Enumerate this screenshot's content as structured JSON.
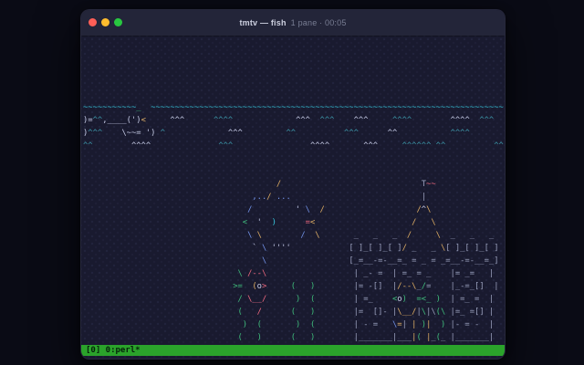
{
  "window": {
    "title": "tmtv — fish",
    "title_detail": "1 pane · 00:05"
  },
  "status_bar": {
    "text": "[0] 0:perl*"
  },
  "palette": {
    "page_bg": "#0a0b15",
    "window_bg": "#191a2f",
    "titlebar_bg": "#232539",
    "traffic_red": "#ff5f57",
    "traffic_yellow": "#febc2e",
    "traffic_green": "#28c840",
    "status_bg": "#2ba32b",
    "status_fg": "#05220a",
    "cy": "#36c3da",
    "te": "#3c96a8",
    "wh": "#c6cbe6",
    "gr": "#3fbe7c",
    "ye": "#dfae64",
    "re": "#ef6a80",
    "bl": "#7495ec",
    "gy": "#9ba1be"
  },
  "terminal": {
    "app": "asciiquarium",
    "cols": 88,
    "rows": [
      [],
      [],
      [],
      [],
      [
        [
          0,
          "cy",
          "~~~~~~~~~~~"
        ],
        [
          11,
          "gr",
          "_"
        ],
        [
          14,
          "cy",
          "~~~~~~~~~~~~~~~~~~~~~~~~~~~~~~~~~~~~~~~~~~~~~~~~~~~~~~~~~~~~~~~~~~~~~~~~~"
        ]
      ],
      [
        [
          0,
          "wh",
          ")="
        ],
        [
          2,
          "te",
          "^^"
        ],
        [
          4,
          "wh",
          ",____('"
        ],
        [
          11,
          "wh",
          ")"
        ],
        [
          12,
          "ye",
          "<"
        ],
        [
          18,
          "wh",
          "^^^"
        ],
        [
          27,
          "te",
          "^^^^"
        ],
        [
          44,
          "wh",
          "^^^"
        ],
        [
          49,
          "te",
          "^^^"
        ],
        [
          56,
          "wh",
          "^^^"
        ],
        [
          64,
          "te",
          "^^^^"
        ],
        [
          76,
          "wh",
          "^^^^"
        ],
        [
          82,
          "te",
          "^^^"
        ]
      ],
      [
        [
          0,
          "wh",
          ")"
        ],
        [
          1,
          "te",
          "^^^"
        ],
        [
          8,
          "wh",
          "\\~~= ')"
        ],
        [
          16,
          "te",
          "^"
        ],
        [
          30,
          "wh",
          "^^^"
        ],
        [
          42,
          "te",
          "^^"
        ],
        [
          54,
          "te",
          "^^^"
        ],
        [
          63,
          "wh",
          "^^"
        ],
        [
          76,
          "te",
          "^^^^"
        ]
      ],
      [
        [
          0,
          "te",
          "^^"
        ],
        [
          10,
          "wh",
          "^^^^"
        ],
        [
          28,
          "te",
          "^^^"
        ],
        [
          47,
          "wh",
          "^^^^"
        ],
        [
          58,
          "wh",
          "^^^"
        ],
        [
          66,
          "te",
          "^^^^^^"
        ],
        [
          73,
          "te",
          "^^"
        ],
        [
          85,
          "te",
          "^^"
        ]
      ],
      [],
      [],
      [
        [
          40,
          "ye",
          "/"
        ],
        [
          70,
          "gy",
          "T"
        ],
        [
          71,
          "re",
          "~~"
        ]
      ],
      [
        [
          35,
          "bl",
          ",.."
        ],
        [
          38,
          "ye",
          "/"
        ],
        [
          40,
          "bl",
          "..."
        ],
        [
          70,
          "gy",
          "|"
        ]
      ],
      [
        [
          34,
          "bl",
          "/"
        ],
        [
          44,
          "wh",
          "'"
        ],
        [
          46,
          "bl",
          "\\"
        ],
        [
          49,
          "ye",
          "/"
        ],
        [
          69,
          "ye",
          "/"
        ],
        [
          70,
          "wh",
          "^"
        ],
        [
          71,
          "ye",
          "\\"
        ]
      ],
      [
        [
          33,
          "gr",
          "<"
        ],
        [
          36,
          "wh",
          "'"
        ],
        [
          39,
          "cy",
          ")"
        ],
        [
          46,
          "re",
          "="
        ],
        [
          47,
          "ye",
          "<"
        ],
        [
          68,
          "ye",
          "/"
        ],
        [
          72,
          "ye",
          "\\"
        ]
      ],
      [
        [
          34,
          "bl",
          "\\"
        ],
        [
          36,
          "ye",
          "\\"
        ],
        [
          45,
          "bl",
          "/"
        ],
        [
          48,
          "ye",
          "\\"
        ],
        [
          56,
          "gy",
          "_"
        ],
        [
          60,
          "gy",
          "_"
        ],
        [
          64,
          "gy",
          "_"
        ],
        [
          67,
          "ye",
          "/"
        ],
        [
          73,
          "ye",
          "\\"
        ],
        [
          76,
          "gy",
          "_"
        ],
        [
          80,
          "gy",
          "_"
        ],
        [
          84,
          "gy",
          "_"
        ]
      ],
      [
        [
          35,
          "wh",
          "`"
        ],
        [
          37,
          "bl",
          "\\"
        ],
        [
          39,
          "wh",
          "''''"
        ],
        [
          55,
          "gy",
          "[ ]_[ ]_[ ]"
        ],
        [
          66,
          "ye",
          "/"
        ],
        [
          67,
          "gy",
          " _   _ "
        ],
        [
          74,
          "ye",
          "\\"
        ],
        [
          75,
          "gy",
          "[ ]_[ ]_[ ]"
        ]
      ],
      [
        [
          37,
          "bl",
          "\\"
        ],
        [
          55,
          "gy",
          "[_=__-=-__=_ = _ = _=__-=-__=_]"
        ]
      ],
      [
        [
          32,
          "gr",
          "\\"
        ],
        [
          34,
          "re",
          "/--\\"
        ],
        [
          55,
          "gy",
          " | _- =  | =_ = _    |= _=   |"
        ]
      ],
      [
        [
          31,
          "gr",
          ">="
        ],
        [
          35,
          "ye",
          "("
        ],
        [
          36,
          "wh",
          "o"
        ],
        [
          37,
          "re",
          ">"
        ],
        [
          43,
          "gr",
          "("
        ],
        [
          47,
          "gr",
          ")"
        ],
        [
          55,
          "gy",
          " |= -[]  |"
        ],
        [
          65,
          "ye",
          "/--\\"
        ],
        [
          69,
          "gy",
          "_"
        ],
        [
          70,
          "gr",
          "/"
        ],
        [
          71,
          "gy",
          "="
        ],
        [
          76,
          "gy",
          "|_-=_[]  |"
        ]
      ],
      [
        [
          32,
          "gr",
          "/"
        ],
        [
          34,
          "re",
          "\\__/"
        ],
        [
          44,
          "gr",
          ")"
        ],
        [
          47,
          "gr",
          "("
        ],
        [
          55,
          "gy",
          " | =_    "
        ],
        [
          64,
          "gr",
          "<"
        ],
        [
          65,
          "wh",
          "o"
        ],
        [
          66,
          "gr",
          ")"
        ],
        [
          69,
          "gr",
          "=<"
        ],
        [
          71,
          "gr",
          "_"
        ],
        [
          73,
          "gr",
          ")"
        ],
        [
          76,
          "gy",
          "| =_ =  |"
        ]
      ],
      [
        [
          32,
          "gr",
          "("
        ],
        [
          36,
          "re",
          "/"
        ],
        [
          43,
          "gr",
          "("
        ],
        [
          47,
          "gr",
          ")"
        ],
        [
          55,
          "gy",
          " |=  []- |"
        ],
        [
          65,
          "ye",
          "\\__/"
        ],
        [
          69,
          "gy",
          "|"
        ],
        [
          70,
          "gr",
          "\\"
        ],
        [
          71,
          "gy",
          "|\\"
        ],
        [
          73,
          "gr",
          "("
        ],
        [
          74,
          "gr",
          "\\"
        ],
        [
          76,
          "gy",
          "|=_ =[] |"
        ]
      ],
      [
        [
          33,
          "gr",
          ")"
        ],
        [
          36,
          "gr",
          "("
        ],
        [
          44,
          "gr",
          ")"
        ],
        [
          47,
          "gr",
          "("
        ],
        [
          55,
          "gy",
          " | - =   "
        ],
        [
          64,
          "bl",
          "\\"
        ],
        [
          65,
          "ye",
          "="
        ],
        [
          66,
          "gy",
          "|"
        ],
        [
          68,
          "ye",
          "|"
        ],
        [
          70,
          "gr",
          ")"
        ],
        [
          71,
          "ye",
          "|"
        ],
        [
          74,
          "gr",
          ")"
        ],
        [
          76,
          "gy",
          "|- = -  |"
        ]
      ],
      [
        [
          32,
          "gr",
          "("
        ],
        [
          36,
          "gr",
          ")"
        ],
        [
          43,
          "gr",
          "("
        ],
        [
          47,
          "gr",
          ")"
        ],
        [
          55,
          "gy",
          " |_______|___"
        ],
        [
          68,
          "ye",
          "|"
        ],
        [
          69,
          "gr",
          "("
        ],
        [
          71,
          "ye",
          "|"
        ],
        [
          72,
          "gy",
          "_"
        ],
        [
          73,
          "gr",
          "("
        ],
        [
          74,
          "gy",
          "_"
        ],
        [
          76,
          "gy",
          "|_______|"
        ]
      ],
      [
        [
          33,
          "gr",
          ")"
        ],
        [
          35,
          "gr",
          "("
        ],
        [
          38,
          "gr",
          ")"
        ],
        [
          40,
          "gr",
          "("
        ],
        [
          44,
          "gr",
          ")"
        ],
        [
          47,
          "gr",
          "("
        ]
      ]
    ]
  }
}
